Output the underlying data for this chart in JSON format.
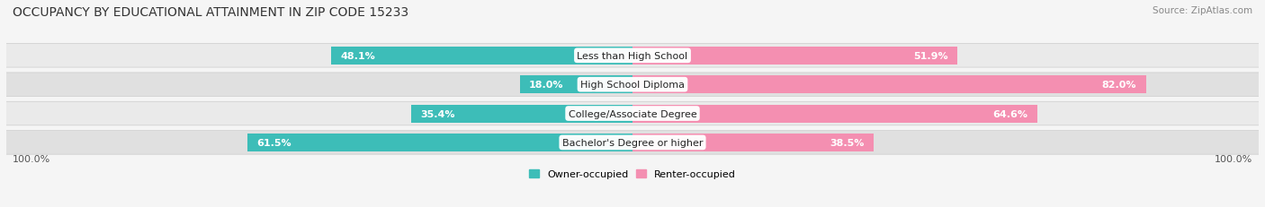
{
  "title": "OCCUPANCY BY EDUCATIONAL ATTAINMENT IN ZIP CODE 15233",
  "source": "Source: ZipAtlas.com",
  "categories": [
    "Less than High School",
    "High School Diploma",
    "College/Associate Degree",
    "Bachelor's Degree or higher"
  ],
  "owner_pct": [
    48.1,
    18.0,
    35.4,
    61.5
  ],
  "renter_pct": [
    51.9,
    82.0,
    64.6,
    38.5
  ],
  "owner_color": "#3dbdb8",
  "renter_color": "#f48fb1",
  "bg_color": "#f5f5f5",
  "row_bg_color": "#e8e8e8",
  "axis_label_left": "100.0%",
  "axis_label_right": "100.0%",
  "legend_owner": "Owner-occupied",
  "legend_renter": "Renter-occupied",
  "title_fontsize": 10,
  "source_fontsize": 7.5,
  "bar_label_fontsize": 8,
  "cat_label_fontsize": 8,
  "pct_label_fontsize": 8
}
